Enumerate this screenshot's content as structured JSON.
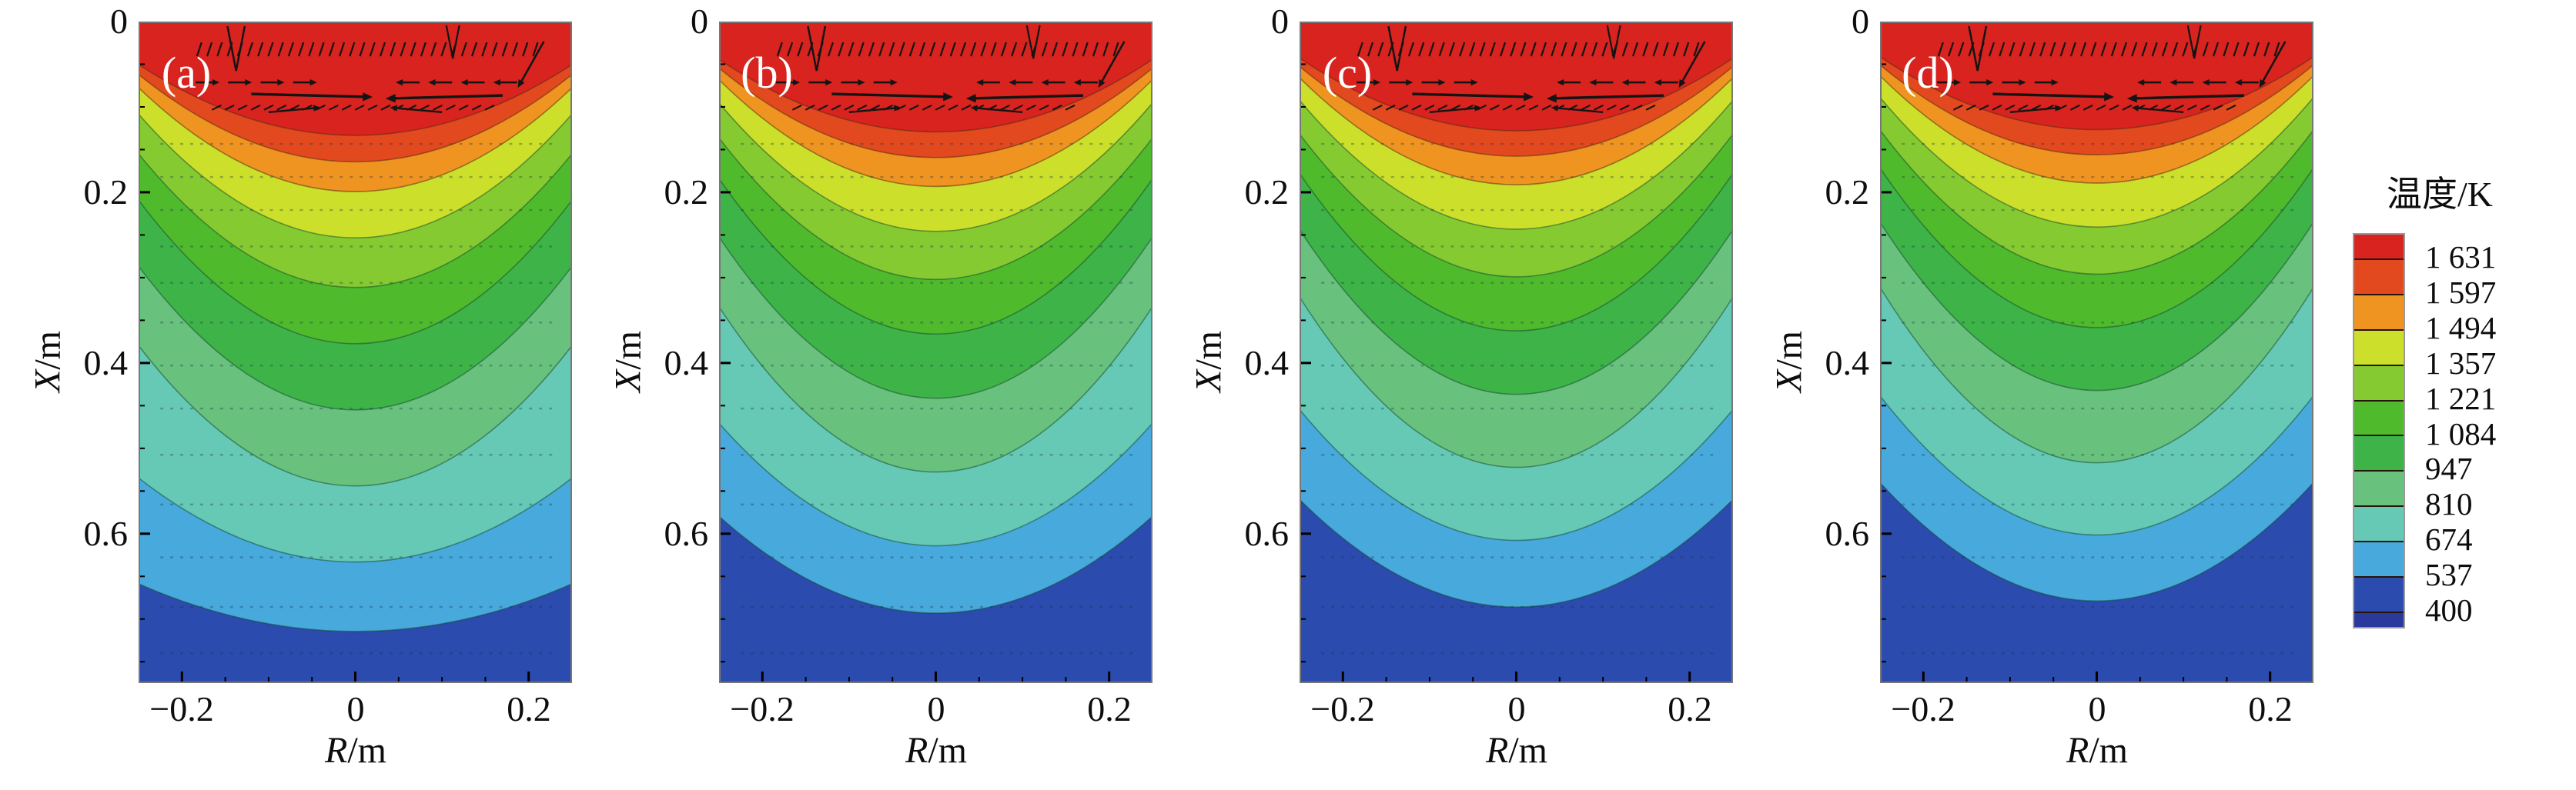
{
  "figure": {
    "axes": {
      "y_label_var": "X",
      "y_label_rest": "/m",
      "x_label_var": "R",
      "x_label_rest": "/m",
      "y_tick_labels": [
        "0",
        "0.2",
        "0.4",
        "0.6"
      ],
      "x_tick_labels": [
        "−0.2",
        "0",
        "0.2"
      ]
    }
  },
  "legend": {
    "title": "温度/K",
    "value_labels": [
      "1 631",
      "1 597",
      "1 494",
      "1 357",
      "1 221",
      "1 084",
      "947",
      "810",
      "674",
      "537",
      "400"
    ],
    "block_colors": [
      "#d8231f",
      "#e2491f",
      "#ef9420",
      "#cbdf2b",
      "#86ca31",
      "#50ba2d",
      "#3eb348",
      "#68c17d",
      "#65c9b5",
      "#47a9dc",
      "#2c4bae",
      "#2a3a9c"
    ]
  },
  "chart_data": {
    "type": "contour",
    "description": "Four axisymmetric temperature-field contour panels with velocity vectors concentrated in the hot upper melt region",
    "panels": [
      {
        "label": "(a)",
        "edge_lift": 1.0,
        "center_lift": 1.0
      },
      {
        "label": "(b)",
        "edge_lift": 0.88,
        "center_lift": 0.97
      },
      {
        "label": "(c)",
        "edge_lift": 0.85,
        "center_lift": 0.96
      },
      {
        "label": "(d)",
        "edge_lift": 0.82,
        "center_lift": 0.95
      }
    ],
    "x_axis": {
      "label": "R/m",
      "range": [
        -0.25,
        0.25
      ],
      "ticks": [
        -0.2,
        0,
        0.2
      ],
      "minor_tick_step": 0.05
    },
    "y_axis": {
      "label": "X/m",
      "range": [
        0,
        0.775
      ],
      "ticks": [
        0,
        0.2,
        0.4,
        0.6
      ],
      "minor_tick_step": 0.05,
      "direction": "down"
    },
    "temperature_levels_K": [
      1631,
      1597,
      1494,
      1357,
      1221,
      1084,
      947,
      810,
      674,
      537,
      400
    ],
    "band_colors_hot_to_cold": [
      "#d8231f",
      "#e2491f",
      "#ef9420",
      "#cbdf2b",
      "#86ca31",
      "#50ba2d",
      "#3eb348",
      "#68c17d",
      "#65c9b5",
      "#47a9dc",
      "#2c4bae",
      "#2a3a9c"
    ],
    "contour_boundaries": [
      {
        "temp_K": 1631,
        "edge_depth_frac": 0.065,
        "center_depth_frac": 0.172
      },
      {
        "temp_K": 1597,
        "edge_depth_frac": 0.08,
        "center_depth_frac": 0.212
      },
      {
        "temp_K": 1494,
        "edge_depth_frac": 0.1,
        "center_depth_frac": 0.257
      },
      {
        "temp_K": 1357,
        "edge_depth_frac": 0.14,
        "center_depth_frac": 0.327
      },
      {
        "temp_K": 1221,
        "edge_depth_frac": 0.2,
        "center_depth_frac": 0.402
      },
      {
        "temp_K": 1084,
        "edge_depth_frac": 0.27,
        "center_depth_frac": 0.487
      },
      {
        "temp_K": 947,
        "edge_depth_frac": 0.37,
        "center_depth_frac": 0.587
      },
      {
        "temp_K": 810,
        "edge_depth_frac": 0.49,
        "center_depth_frac": 0.702
      },
      {
        "temp_K": 674,
        "edge_depth_frac": 0.69,
        "center_depth_frac": 0.817
      },
      {
        "temp_K": 537,
        "edge_depth_frac": 0.85,
        "center_depth_frac": 0.922
      }
    ],
    "vector_field_note": "black arrows: two converging horizontal rows plus slanted tick row inside red region; faint dotted vector rows throughout"
  }
}
